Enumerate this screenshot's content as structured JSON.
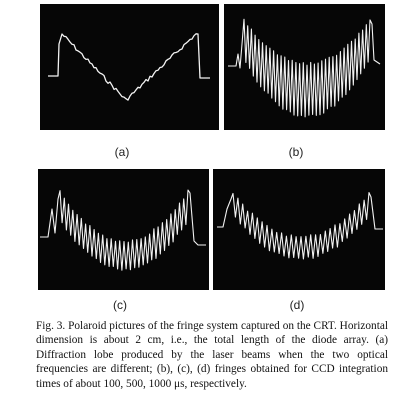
{
  "figure": {
    "panels": [
      {
        "id": "a",
        "label": "(a)"
      },
      {
        "id": "b",
        "label": "(b)"
      },
      {
        "id": "c",
        "label": "(c)"
      },
      {
        "id": "d",
        "label": "(d)"
      }
    ],
    "caption": {
      "figure_number": "Fig. 3.",
      "text": "Polaroid pictures of the fringe system captured on the CRT. Horizontal dimension is about 2 cm, i.e., the total length of the diode array. (a) Diffraction lobe produced by the laser beams when the two optical frequencies are different; (b), (c), (d) fringes obtained for CCD integration times of about 100, 500, 1000 μs, respectively."
    }
  }
}
